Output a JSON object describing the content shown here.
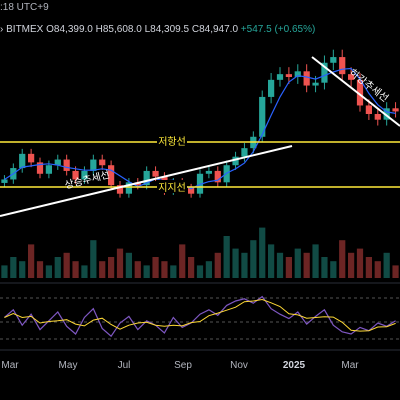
{
  "header": {
    "time_fragment": ":18 UTC+9",
    "exchange": "BITMEX",
    "open": "O84,399.0",
    "high": "H85,608.0",
    "low": "L84,309.5",
    "close": "C84,947.0",
    "change": "+547.5 (+0.65%)"
  },
  "annotations": {
    "resistance": "저항선",
    "support": "지지선",
    "uptrend": "상승추세선",
    "downtrend": "하강추세선"
  },
  "x_ticks": [
    "Mar",
    "May",
    "Jul",
    "Sep",
    "Nov",
    "2025",
    "Mar"
  ],
  "colors": {
    "background": "#000000",
    "candle_up": "#26a69a",
    "candle_down": "#ef5350",
    "moving_average": "#2962ff",
    "level_lines": "#ffeb3b",
    "trendlines": "#ffffff",
    "oscillator": "#7e57c2",
    "oscillator_signal": "#fdd835"
  },
  "chart_data": [
    {
      "type": "candlestick",
      "title": "",
      "series": [
        {
          "name": "",
          "approx_close": [
            61000,
            65000,
            70000,
            67000,
            63000,
            66000,
            68000,
            64000,
            61000,
            64000,
            68000,
            66000,
            59000,
            56000,
            60000,
            59000,
            64000,
            62000,
            57000,
            60000,
            58000,
            56000,
            63000,
            64000,
            60000,
            66000,
            69000,
            72000,
            76000,
            90000,
            96000,
            98000,
            97000,
            99000,
            94000,
            95000,
            102000,
            104000,
            98000,
            96000,
            87000,
            84000,
            82000,
            86000,
            84900
          ]
        }
      ],
      "x_range": [
        "2024-02",
        "2025-04"
      ],
      "grid": false
    },
    {
      "type": "bar",
      "title": "",
      "series": [
        {
          "name": "",
          "approx_values": [
            3,
            5,
            4,
            8,
            4,
            3,
            5,
            6,
            4,
            3,
            9,
            4,
            5,
            7,
            6,
            4,
            3,
            5,
            4,
            3,
            8,
            5,
            3,
            4,
            6,
            10,
            7,
            6,
            9,
            12,
            8,
            6,
            5,
            7,
            6,
            8,
            5,
            4,
            9,
            6,
            7,
            5,
            4,
            6,
            3
          ]
        }
      ]
    },
    {
      "type": "line",
      "title": "",
      "series": [
        {
          "name": "",
          "approx_values": [
            55,
            62,
            48,
            58,
            44,
            52,
            60,
            47,
            40,
            55,
            63,
            45,
            38,
            50,
            56,
            44,
            52,
            48,
            41,
            55,
            46,
            50,
            58,
            62,
            57,
            66,
            70,
            72,
            68,
            74,
            63,
            58,
            54,
            60,
            49,
            56,
            62,
            48,
            42,
            40,
            46,
            43,
            50,
            47,
            52
          ]
        }
      ]
    }
  ]
}
